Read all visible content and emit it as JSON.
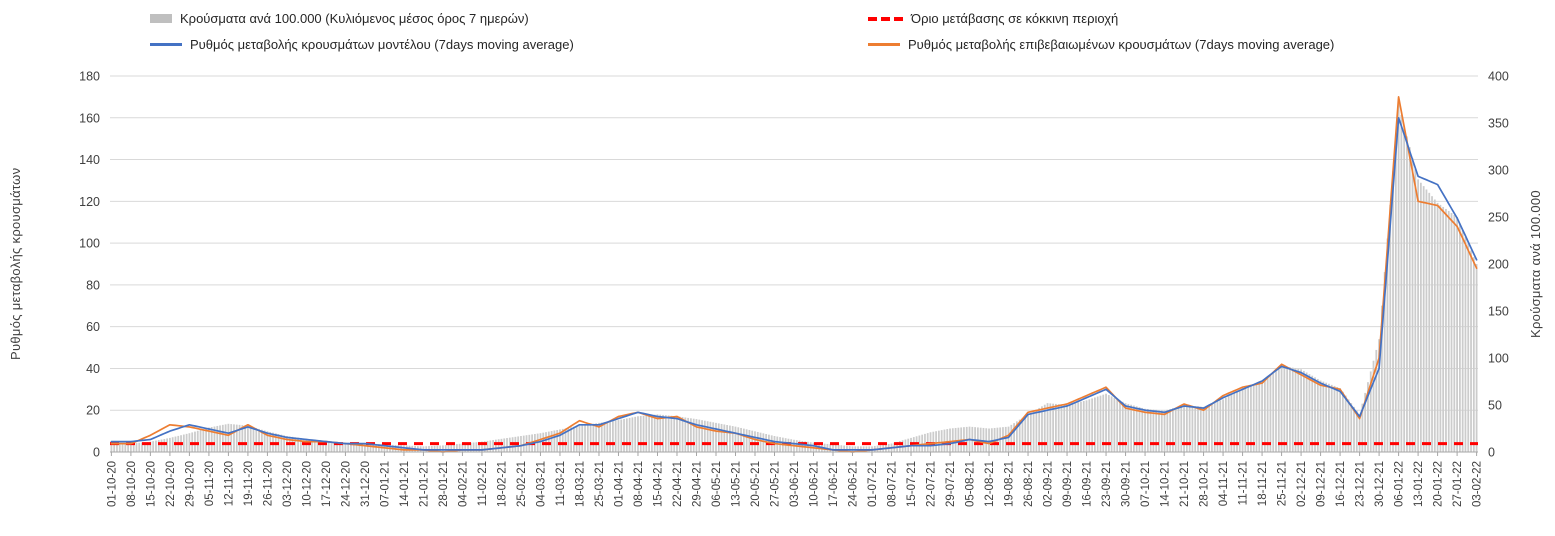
{
  "chart_data": {
    "type": "combo",
    "title": "",
    "legend_position": "top",
    "grid": true,
    "x_labels": [
      "01-10-20",
      "08-10-20",
      "15-10-20",
      "22-10-20",
      "29-10-20",
      "05-11-20",
      "12-11-20",
      "19-11-20",
      "26-11-20",
      "03-12-20",
      "10-12-20",
      "17-12-20",
      "24-12-20",
      "31-12-20",
      "07-01-21",
      "14-01-21",
      "21-01-21",
      "28-01-21",
      "04-02-21",
      "11-02-21",
      "18-02-21",
      "25-02-21",
      "04-03-21",
      "11-03-21",
      "18-03-21",
      "25-03-21",
      "01-04-21",
      "08-04-21",
      "15-04-21",
      "22-04-21",
      "29-04-21",
      "06-05-21",
      "13-05-21",
      "20-05-21",
      "27-05-21",
      "03-06-21",
      "10-06-21",
      "17-06-21",
      "24-06-21",
      "01-07-21",
      "08-07-21",
      "15-07-21",
      "22-07-21",
      "29-07-21",
      "05-08-21",
      "12-08-21",
      "19-08-21",
      "26-08-21",
      "02-09-21",
      "09-09-21",
      "16-09-21",
      "23-09-21",
      "30-09-21",
      "07-10-21",
      "14-10-21",
      "21-10-21",
      "28-10-21",
      "04-11-21",
      "11-11-21",
      "18-11-21",
      "25-11-21",
      "02-12-21",
      "09-12-21",
      "16-12-21",
      "23-12-21",
      "30-12-21",
      "06-01-22",
      "13-01-22",
      "20-01-22",
      "27-01-22",
      "03-02-22"
    ],
    "series": [
      {
        "name": "Κρούσματα ανά 100.000 (Κυλιόμενος μέσος όρος 7 ημερών)",
        "type": "bar",
        "axis": "right",
        "color": "#cccccc",
        "values": [
          8,
          9,
          11,
          15,
          20,
          26,
          30,
          28,
          22,
          17,
          14,
          12,
          10,
          9,
          8,
          7,
          6,
          7,
          9,
          11,
          14,
          17,
          20,
          24,
          28,
          31,
          34,
          38,
          40,
          38,
          35,
          31,
          27,
          22,
          17,
          13,
          10,
          8,
          6,
          6,
          9,
          15,
          21,
          25,
          27,
          25,
          27,
          40,
          52,
          50,
          55,
          62,
          52,
          46,
          44,
          50,
          48,
          56,
          68,
          75,
          92,
          88,
          76,
          68,
          40,
          120,
          370,
          290,
          265,
          250,
          200
        ]
      },
      {
        "name": "Ρυθμός μεταβολής κρουσμάτων μοντέλου (7days moving average)",
        "type": "line",
        "axis": "left",
        "color": "#4472c4",
        "values": [
          5,
          5,
          6,
          10,
          13,
          11,
          9,
          12,
          9,
          7,
          6,
          5,
          4,
          4,
          3,
          2,
          1,
          1,
          1,
          1,
          2,
          3,
          5,
          8,
          13,
          13,
          16,
          19,
          17,
          16,
          13,
          11,
          9,
          7,
          5,
          4,
          3,
          1,
          1,
          1,
          2,
          3,
          3,
          4,
          6,
          5,
          7,
          18,
          20,
          22,
          26,
          30,
          22,
          20,
          19,
          22,
          21,
          26,
          30,
          34,
          41,
          38,
          33,
          29,
          17,
          40,
          160,
          132,
          128,
          112,
          92
        ]
      },
      {
        "name": "Ρυθμός μεταβολής επιβεβαιωμένων κρουσμάτων (7days moving average)",
        "type": "line",
        "axis": "left",
        "color": "#ed7d31",
        "values": [
          4,
          4,
          8,
          13,
          12,
          10,
          8,
          13,
          8,
          6,
          5,
          5,
          4,
          3,
          2,
          1,
          1,
          0,
          1,
          1,
          2,
          3,
          6,
          9,
          15,
          12,
          17,
          19,
          16,
          17,
          12,
          10,
          9,
          6,
          4,
          3,
          2,
          1,
          0,
          1,
          2,
          3,
          4,
          5,
          6,
          4,
          8,
          19,
          21,
          23,
          27,
          31,
          21,
          19,
          18,
          23,
          20,
          27,
          31,
          33,
          42,
          37,
          32,
          30,
          16,
          45,
          170,
          120,
          118,
          108,
          88
        ]
      },
      {
        "name": "Όριο μετάβασης σε κόκκινη περιοχή",
        "type": "threshold",
        "axis": "left",
        "color": "#ff0000",
        "value": 4
      }
    ],
    "left_axis": {
      "label": "Ρυθμός μεταβολής κρουσμάτων",
      "min": 0,
      "max": 180,
      "step": 20
    },
    "right_axis": {
      "label": "Κρούσματα ανά 100.000",
      "min": 0,
      "max": 400,
      "step": 50
    }
  }
}
